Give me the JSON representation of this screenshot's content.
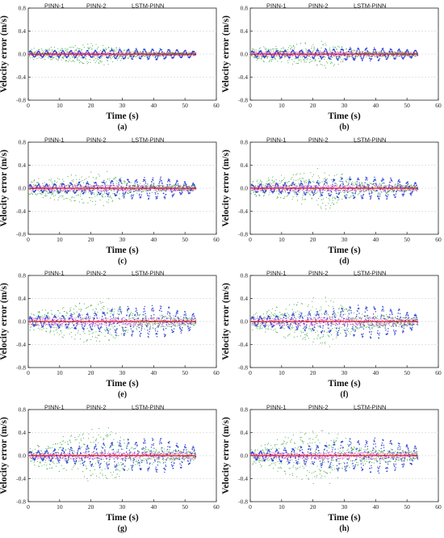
{
  "figure": {
    "x_axis_label": "Time (s)",
    "y_axis_label": "Velocity error (m/s)",
    "legend": [
      "PINN-1",
      "PINN-2",
      "LSTM-PINN"
    ]
  },
  "colors": {
    "pinn1": "#e040e0",
    "pinn2": "#2e9e2e",
    "lstm_pinn": "#2038d0",
    "reference": "#e01010",
    "grid": "#c8c8c8",
    "axis": "#222222"
  },
  "chart_data": [
    {
      "type": "scatter",
      "panel_label": "(a)",
      "xlabel": "Time (s)",
      "ylabel": "Velocity error (m/s)",
      "xlim": [
        0,
        60
      ],
      "ylim": [
        -0.8,
        0.8
      ],
      "x_ticks": [
        0,
        10,
        20,
        30,
        40,
        50,
        60
      ],
      "y_ticks": [
        "0.8",
        "0.4",
        "0.0",
        "-0.4",
        "-0.8"
      ],
      "grid": "horizontal dashed",
      "legend_position": "top",
      "series": [
        {
          "name": "PINN-1",
          "amplitude_envelope": [
            [
              0,
              0.03
            ],
            [
              53,
              0.03
            ]
          ]
        },
        {
          "name": "PINN-2",
          "amplitude_envelope": [
            [
              0,
              0.1
            ],
            [
              18,
              0.18
            ],
            [
              25,
              0.2
            ],
            [
              34,
              0.05
            ],
            [
              53,
              0.03
            ]
          ]
        },
        {
          "name": "LSTM-PINN",
          "amplitude_envelope": [
            [
              0,
              0.05
            ],
            [
              20,
              0.06
            ],
            [
              30,
              0.08
            ],
            [
              42,
              0.09
            ],
            [
              53,
              0.05
            ]
          ]
        }
      ]
    },
    {
      "type": "scatter",
      "panel_label": "(b)",
      "xlabel": "Time (s)",
      "ylabel": "Velocity error (m/s)",
      "xlim": [
        0,
        60
      ],
      "ylim": [
        -0.8,
        0.8
      ],
      "x_ticks": [
        0,
        10,
        20,
        30,
        40,
        50,
        60
      ],
      "y_ticks": [
        "0.8",
        "0.4",
        "0.0",
        "-0.4",
        "-0.8"
      ],
      "grid": "horizontal dashed",
      "legend_position": "top",
      "series": [
        {
          "name": "PINN-1",
          "amplitude_envelope": [
            [
              0,
              0.04
            ],
            [
              53,
              0.04
            ]
          ]
        },
        {
          "name": "PINN-2",
          "amplitude_envelope": [
            [
              0,
              0.12
            ],
            [
              18,
              0.2
            ],
            [
              25,
              0.25
            ],
            [
              34,
              0.06
            ],
            [
              53,
              0.04
            ]
          ]
        },
        {
          "name": "LSTM-PINN",
          "amplitude_envelope": [
            [
              0,
              0.05
            ],
            [
              20,
              0.07
            ],
            [
              30,
              0.1
            ],
            [
              42,
              0.1
            ],
            [
              53,
              0.06
            ]
          ]
        }
      ]
    },
    {
      "type": "scatter",
      "panel_label": "(c)",
      "xlabel": "Time (s)",
      "ylabel": "Velocity error (m/s)",
      "xlim": [
        0,
        60
      ],
      "ylim": [
        -0.8,
        0.8
      ],
      "x_ticks": [
        0,
        10,
        20,
        30,
        40,
        50,
        60
      ],
      "y_ticks": [
        "0.8",
        "0.4",
        "0.0",
        "-0.4",
        "-0.8"
      ],
      "grid": "horizontal dashed",
      "legend_position": "top",
      "series": [
        {
          "name": "PINN-1",
          "amplitude_envelope": [
            [
              0,
              0.05
            ],
            [
              53,
              0.05
            ]
          ]
        },
        {
          "name": "PINN-2",
          "amplitude_envelope": [
            [
              0,
              0.15
            ],
            [
              18,
              0.28
            ],
            [
              25,
              0.32
            ],
            [
              34,
              0.1
            ],
            [
              53,
              0.05
            ]
          ]
        },
        {
          "name": "LSTM-PINN",
          "amplitude_envelope": [
            [
              0,
              0.06
            ],
            [
              20,
              0.1
            ],
            [
              30,
              0.15
            ],
            [
              42,
              0.17
            ],
            [
              53,
              0.08
            ]
          ]
        }
      ]
    },
    {
      "type": "scatter",
      "panel_label": "(d)",
      "xlabel": "Time (s)",
      "ylabel": "Velocity error (m/s)",
      "xlim": [
        0,
        60
      ],
      "ylim": [
        -0.8,
        0.8
      ],
      "x_ticks": [
        0,
        10,
        20,
        30,
        40,
        50,
        60
      ],
      "y_ticks": [
        "0.8",
        "0.4",
        "0.0",
        "-0.4",
        "-0.8"
      ],
      "grid": "horizontal dashed",
      "legend_position": "top",
      "series": [
        {
          "name": "PINN-1",
          "amplitude_envelope": [
            [
              0,
              0.05
            ],
            [
              53,
              0.05
            ]
          ]
        },
        {
          "name": "PINN-2",
          "amplitude_envelope": [
            [
              0,
              0.15
            ],
            [
              18,
              0.32
            ],
            [
              25,
              0.38
            ],
            [
              34,
              0.12
            ],
            [
              53,
              0.06
            ]
          ]
        },
        {
          "name": "LSTM-PINN",
          "amplitude_envelope": [
            [
              0,
              0.06
            ],
            [
              20,
              0.11
            ],
            [
              30,
              0.17
            ],
            [
              42,
              0.18
            ],
            [
              53,
              0.09
            ]
          ]
        }
      ]
    },
    {
      "type": "scatter",
      "panel_label": "(e)",
      "xlabel": "Time (s)",
      "ylabel": "Velocity error (m/s)",
      "xlim": [
        0,
        60
      ],
      "ylim": [
        -0.8,
        0.8
      ],
      "x_ticks": [
        0,
        10,
        20,
        30,
        40,
        50,
        60
      ],
      "y_ticks": [
        "0.8",
        "0.4",
        "0.0",
        "-0.4",
        "-0.8"
      ],
      "grid": "horizontal dashed",
      "legend_position": "top",
      "series": [
        {
          "name": "PINN-1",
          "amplitude_envelope": [
            [
              0,
              0.07
            ],
            [
              53,
              0.06
            ]
          ]
        },
        {
          "name": "PINN-2",
          "amplitude_envelope": [
            [
              0,
              0.15
            ],
            [
              18,
              0.38
            ],
            [
              25,
              0.45
            ],
            [
              34,
              0.15
            ],
            [
              53,
              0.08
            ]
          ]
        },
        {
          "name": "LSTM-PINN",
          "amplitude_envelope": [
            [
              0,
              0.07
            ],
            [
              20,
              0.14
            ],
            [
              30,
              0.22
            ],
            [
              42,
              0.25
            ],
            [
              53,
              0.12
            ]
          ]
        }
      ]
    },
    {
      "type": "scatter",
      "panel_label": "(f)",
      "xlabel": "Time (s)",
      "ylabel": "Velocity error (m/s)",
      "xlim": [
        0,
        60
      ],
      "ylim": [
        -0.8,
        0.8
      ],
      "x_ticks": [
        0,
        10,
        20,
        30,
        40,
        50,
        60
      ],
      "y_ticks": [
        "0.8",
        "0.4",
        "0.0",
        "-0.4",
        "-0.8"
      ],
      "grid": "horizontal dashed",
      "legend_position": "top",
      "series": [
        {
          "name": "PINN-1",
          "amplitude_envelope": [
            [
              0,
              0.08
            ],
            [
              53,
              0.07
            ]
          ]
        },
        {
          "name": "PINN-2",
          "amplitude_envelope": [
            [
              0,
              0.15
            ],
            [
              18,
              0.4
            ],
            [
              25,
              0.48
            ],
            [
              34,
              0.16
            ],
            [
              53,
              0.08
            ]
          ]
        },
        {
          "name": "LSTM-PINN",
          "amplitude_envelope": [
            [
              0,
              0.07
            ],
            [
              20,
              0.15
            ],
            [
              30,
              0.23
            ],
            [
              42,
              0.26
            ],
            [
              53,
              0.12
            ]
          ]
        }
      ]
    },
    {
      "type": "scatter",
      "panel_label": "(g)",
      "xlabel": "Time (s)",
      "ylabel": "Velocity error (m/s)",
      "xlim": [
        0,
        60
      ],
      "ylim": [
        -0.8,
        0.8
      ],
      "x_ticks": [
        0,
        10,
        20,
        30,
        40,
        50,
        60
      ],
      "y_ticks": [
        "0.8",
        "0.4",
        "0.0",
        "-0.4",
        "-0.8"
      ],
      "grid": "horizontal dashed",
      "legend_position": "top",
      "series": [
        {
          "name": "PINN-1",
          "amplitude_envelope": [
            [
              0,
              0.06
            ],
            [
              53,
              0.06
            ]
          ]
        },
        {
          "name": "PINN-2",
          "amplitude_envelope": [
            [
              0,
              0.15
            ],
            [
              18,
              0.45
            ],
            [
              25,
              0.55
            ],
            [
              34,
              0.18
            ],
            [
              53,
              0.08
            ]
          ]
        },
        {
          "name": "LSTM-PINN",
          "amplitude_envelope": [
            [
              0,
              0.06
            ],
            [
              20,
              0.16
            ],
            [
              30,
              0.24
            ],
            [
              42,
              0.27
            ],
            [
              53,
              0.14
            ]
          ]
        }
      ]
    },
    {
      "type": "scatter",
      "panel_label": "(h)",
      "xlabel": "Time (s)",
      "ylabel": "Velocity error (m/s)",
      "xlim": [
        0,
        60
      ],
      "ylim": [
        -0.8,
        0.8
      ],
      "x_ticks": [
        0,
        10,
        20,
        30,
        40,
        50,
        60
      ],
      "y_ticks": [
        "0.8",
        "0.4",
        "0.0",
        "-0.4",
        "-0.8"
      ],
      "grid": "horizontal dashed",
      "legend_position": "top",
      "series": [
        {
          "name": "PINN-1",
          "amplitude_envelope": [
            [
              0,
              0.06
            ],
            [
              53,
              0.06
            ]
          ]
        },
        {
          "name": "PINN-2",
          "amplitude_envelope": [
            [
              0,
              0.15
            ],
            [
              18,
              0.46
            ],
            [
              25,
              0.56
            ],
            [
              34,
              0.18
            ],
            [
              53,
              0.08
            ]
          ]
        },
        {
          "name": "LSTM-PINN",
          "amplitude_envelope": [
            [
              0,
              0.06
            ],
            [
              20,
              0.16
            ],
            [
              30,
              0.25
            ],
            [
              42,
              0.27
            ],
            [
              53,
              0.14
            ]
          ]
        }
      ]
    }
  ]
}
